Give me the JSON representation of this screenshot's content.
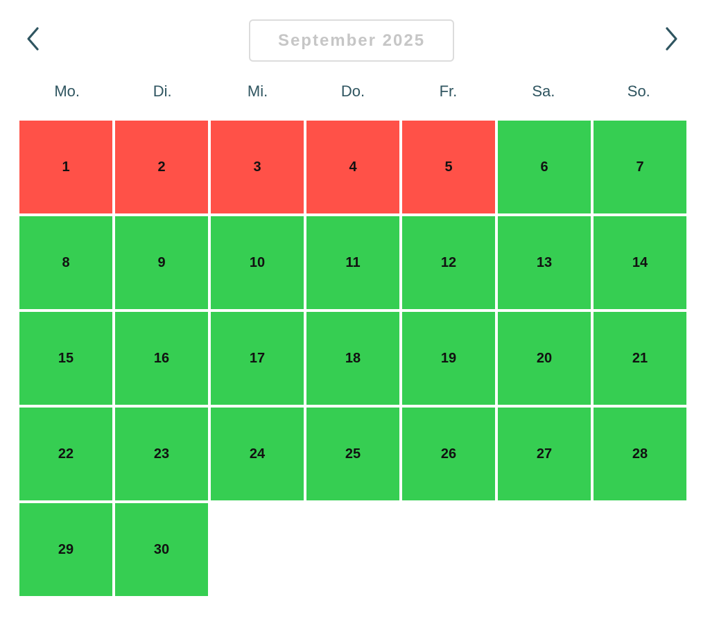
{
  "header": {
    "month_label": "September 2025"
  },
  "icons": {
    "prev": "chevron-left-icon",
    "next": "chevron-right-icon"
  },
  "colors": {
    "booked": "#ff5148",
    "free": "#36ce52",
    "weekday_text": "#2f5560",
    "month_text": "#c6c6c6"
  },
  "weekdays": [
    "Mo.",
    "Di.",
    "Mi.",
    "Do.",
    "Fr.",
    "Sa.",
    "So."
  ],
  "days": [
    {
      "label": "1",
      "status": "booked"
    },
    {
      "label": "2",
      "status": "booked"
    },
    {
      "label": "3",
      "status": "booked"
    },
    {
      "label": "4",
      "status": "booked"
    },
    {
      "label": "5",
      "status": "booked"
    },
    {
      "label": "6",
      "status": "free"
    },
    {
      "label": "7",
      "status": "free"
    },
    {
      "label": "8",
      "status": "free"
    },
    {
      "label": "9",
      "status": "free"
    },
    {
      "label": "10",
      "status": "free"
    },
    {
      "label": "11",
      "status": "free"
    },
    {
      "label": "12",
      "status": "free"
    },
    {
      "label": "13",
      "status": "free"
    },
    {
      "label": "14",
      "status": "free"
    },
    {
      "label": "15",
      "status": "free"
    },
    {
      "label": "16",
      "status": "free"
    },
    {
      "label": "17",
      "status": "free"
    },
    {
      "label": "18",
      "status": "free"
    },
    {
      "label": "19",
      "status": "free"
    },
    {
      "label": "20",
      "status": "free"
    },
    {
      "label": "21",
      "status": "free"
    },
    {
      "label": "22",
      "status": "free"
    },
    {
      "label": "23",
      "status": "free"
    },
    {
      "label": "24",
      "status": "free"
    },
    {
      "label": "25",
      "status": "free"
    },
    {
      "label": "26",
      "status": "free"
    },
    {
      "label": "27",
      "status": "free"
    },
    {
      "label": "28",
      "status": "free"
    },
    {
      "label": "29",
      "status": "free"
    },
    {
      "label": "30",
      "status": "free"
    }
  ]
}
